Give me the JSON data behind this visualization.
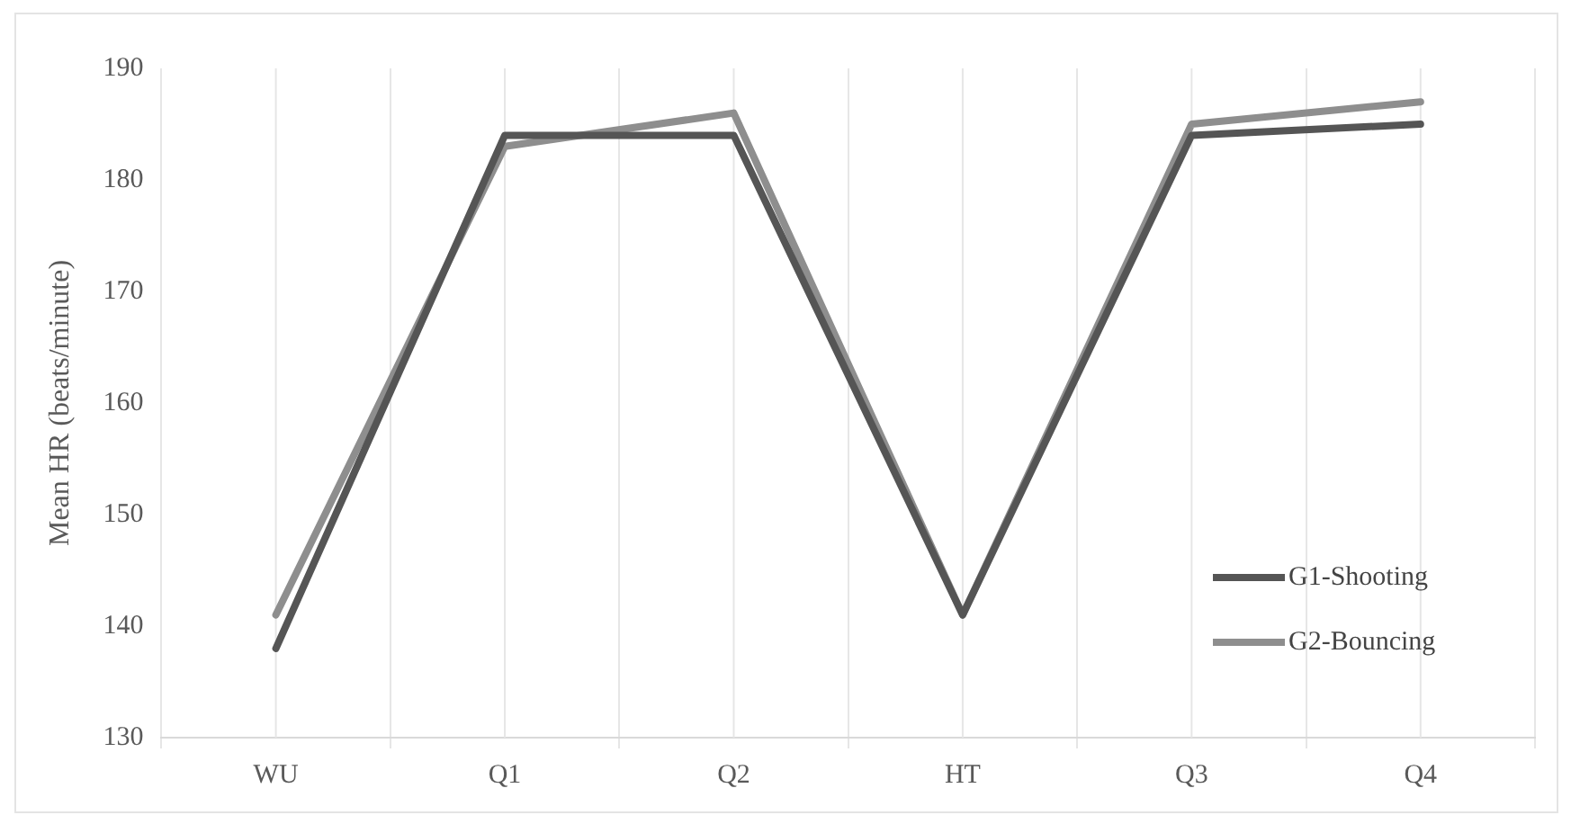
{
  "chart_data": {
    "type": "line",
    "ylabel": "Mean HR (beats/minute)",
    "categories": [
      "WU",
      "Q1",
      "Q2",
      "HT",
      "Q3",
      "Q4"
    ],
    "series": [
      {
        "name": "G1-Shooting",
        "color": "#555555",
        "values": [
          138,
          184,
          184,
          141,
          184,
          185
        ]
      },
      {
        "name": "G2-Bouncing",
        "color": "#8e8e8e",
        "values": [
          141,
          183,
          186,
          141,
          185,
          187
        ]
      }
    ],
    "ylim": [
      130,
      190
    ],
    "yticks": [
      130,
      140,
      150,
      160,
      170,
      180,
      190
    ],
    "grid": "x",
    "legend": "bottom right",
    "marker": "none",
    "line_style": "solid"
  }
}
